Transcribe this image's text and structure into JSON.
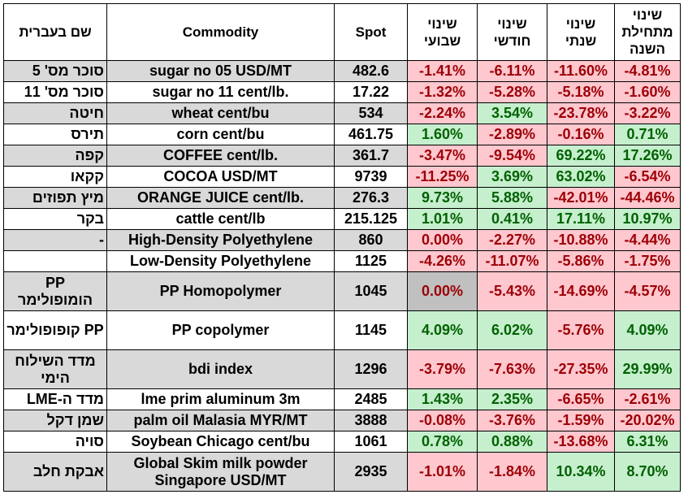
{
  "headers": {
    "hebrew_name": "שם בעברית",
    "commodity": "Commodity",
    "spot": "Spot",
    "weekly": "שינוי שבועי",
    "monthly": "שינוי חודשי",
    "yearly": "שינוי שנתי",
    "ytd": "שינוי מתחילת השנה"
  },
  "rows": [
    {
      "heb": "סוכר מס' 5",
      "commodity": "sugar no 05 USD/MT",
      "spot": "482.6",
      "weekly": "-1.41%",
      "monthly": "-6.11%",
      "yearly": "-11.60%",
      "ytd": "-4.81%"
    },
    {
      "heb": "סוכר מס' 11",
      "commodity": "sugar no 11 cent/lb.",
      "spot": "17.22",
      "weekly": "-1.32%",
      "monthly": "-5.28%",
      "yearly": "-5.18%",
      "ytd": "-1.60%"
    },
    {
      "heb": "חיטה",
      "commodity": "wheat cent/bu",
      "spot": "534",
      "weekly": "-2.24%",
      "monthly": "3.54%",
      "yearly": "-23.78%",
      "ytd": "-3.22%"
    },
    {
      "heb": "תירס",
      "commodity": "corn cent/bu",
      "spot": "461.75",
      "weekly": "1.60%",
      "monthly": "-2.89%",
      "yearly": "-0.16%",
      "ytd": "0.71%"
    },
    {
      "heb": "קפה",
      "commodity": "COFFEE cent/lb.",
      "spot": "361.7",
      "weekly": "-3.47%",
      "monthly": "-9.54%",
      "yearly": "69.22%",
      "ytd": "17.26%"
    },
    {
      "heb": "קקאו",
      "commodity": "COCOA USD/MT",
      "spot": "9739",
      "weekly": "-11.25%",
      "monthly": "3.69%",
      "yearly": "63.02%",
      "ytd": "-6.54%"
    },
    {
      "heb": "מיץ תפוזים",
      "commodity": "ORANGE JUICE cent/lb.",
      "spot": "276.3",
      "weekly": "9.73%",
      "monthly": "5.88%",
      "yearly": "-42.01%",
      "ytd": "-44.46%"
    },
    {
      "heb": "בקר",
      "commodity": "cattle cent/lb",
      "spot": "215.125",
      "weekly": "1.01%",
      "monthly": "0.41%",
      "yearly": "17.11%",
      "ytd": "10.97%"
    },
    {
      "heb": "-",
      "commodity": "High-Density Polyethylene",
      "spot": "860",
      "weekly": "0.00%",
      "monthly": "-2.27%",
      "yearly": "-10.88%",
      "ytd": "-4.44%"
    },
    {
      "heb": "",
      "commodity": "Low-Density Polyethylene",
      "spot": "1125",
      "weekly": "-4.26%",
      "monthly": "-11.07%",
      "yearly": "-5.86%",
      "ytd": "-1.75%"
    },
    {
      "heb": "PP הומופולימר",
      "commodity": "PP Homopolymer",
      "spot": "1045",
      "weekly": "0.00%",
      "monthly": "-5.43%",
      "yearly": "-14.69%",
      "ytd": "-4.57%"
    },
    {
      "heb": "PP קופופולימר",
      "commodity": "PP copolymer",
      "spot": "1145",
      "weekly": "4.09%",
      "monthly": "6.02%",
      "yearly": "-5.76%",
      "ytd": "4.09%"
    },
    {
      "heb": "מדד השילוח הימי",
      "commodity": "bdi index",
      "spot": "1296",
      "weekly": "-3.79%",
      "monthly": "-7.63%",
      "yearly": "-27.35%",
      "ytd": "29.99%"
    },
    {
      "heb": "מדד ה-LME",
      "commodity": "lme prim aluminum 3m",
      "spot": "2485",
      "weekly": "1.43%",
      "monthly": "2.35%",
      "yearly": "-6.65%",
      "ytd": "-2.61%"
    },
    {
      "heb": "שמן דקל",
      "commodity": "palm oil Malasia MYR/MT",
      "spot": "3888",
      "weekly": "-0.08%",
      "monthly": "-3.76%",
      "yearly": "-1.59%",
      "ytd": "-20.02%"
    },
    {
      "heb": "סויה",
      "commodity": "Soybean Chicago cent/bu",
      "spot": "1061",
      "weekly": "0.78%",
      "monthly": "0.88%",
      "yearly": "-13.68%",
      "ytd": "6.31%"
    },
    {
      "heb": "אבקת חלב",
      "commodity": "Global Skim milk powder Singapore USD/MT",
      "spot": "2935",
      "weekly": "-1.01%",
      "monthly": "-1.84%",
      "yearly": "10.34%",
      "ytd": "8.70%"
    }
  ]
}
